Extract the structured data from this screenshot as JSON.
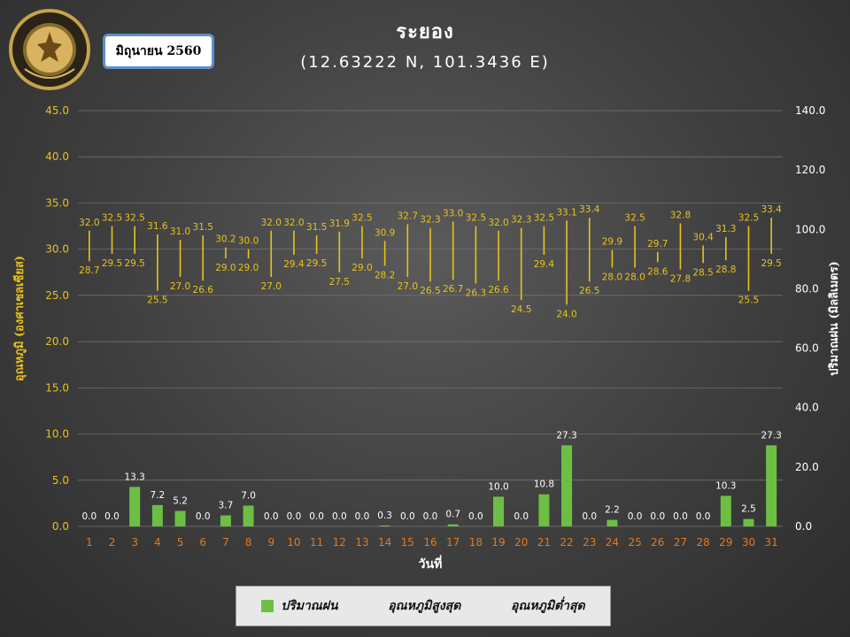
{
  "header": {
    "title": "ระยอง",
    "subtitle": "(12.63222 N, 101.3436 E)",
    "month_label": "มิถุนายน 2560",
    "logo_text": "METEOROLOGICAL DEPARTMENT"
  },
  "legend": {
    "rain": "ปริมาณฝน",
    "tmax": "อุณหภูมิสูงสุด",
    "tmin": "อุณหภูมิต่ำสุด"
  },
  "colors": {
    "rain": "#6dbf44",
    "temp": "#e8c21c",
    "axis_left": "#e8c21c",
    "xtick": "#e07a20"
  },
  "chart_data": {
    "type": "bar",
    "xlabel": "วันที่",
    "ylabel_left": "อุณหภูมิ (องศาเซลเซียส)",
    "ylabel_right": "ปริมาณฝน (มิลลิเมตร)",
    "ylim_left": [
      0,
      45
    ],
    "ylim_right": [
      0,
      140
    ],
    "left_ticks": [
      "0.0",
      "5.0",
      "10.0",
      "15.0",
      "20.0",
      "25.0",
      "30.0",
      "35.0",
      "40.0",
      "45.0"
    ],
    "right_ticks": [
      "0.0",
      "20.0",
      "40.0",
      "60.0",
      "80.0",
      "100.0",
      "120.0",
      "140.0"
    ],
    "categories": [
      "1",
      "2",
      "3",
      "4",
      "5",
      "6",
      "7",
      "8",
      "9",
      "10",
      "11",
      "12",
      "13",
      "14",
      "15",
      "16",
      "17",
      "18",
      "19",
      "20",
      "21",
      "22",
      "23",
      "24",
      "25",
      "26",
      "27",
      "28",
      "29",
      "30",
      "31"
    ],
    "series": [
      {
        "name": "ปริมาณฝน",
        "axis": "right",
        "type": "bar",
        "values": [
          0.0,
          0.0,
          13.3,
          7.2,
          5.2,
          0.0,
          3.7,
          7.0,
          0.0,
          0.0,
          0.0,
          0.0,
          0.0,
          0.3,
          0.0,
          0.0,
          0.7,
          0.0,
          10.0,
          0.0,
          10.8,
          27.3,
          0.0,
          2.2,
          0.0,
          0.0,
          0.0,
          0.0,
          10.3,
          2.5,
          27.3
        ]
      },
      {
        "name": "อุณหภูมิสูงสุด",
        "axis": "left",
        "type": "range-high",
        "values": [
          32.0,
          32.5,
          32.5,
          31.6,
          31.0,
          31.5,
          30.2,
          30.0,
          32.0,
          32.0,
          31.5,
          31.9,
          32.5,
          30.9,
          32.7,
          32.3,
          33.0,
          32.5,
          32.0,
          32.3,
          32.5,
          33.1,
          33.4,
          29.9,
          32.5,
          29.7,
          32.8,
          30.4,
          31.3,
          32.5,
          33.4
        ]
      },
      {
        "name": "อุณหภูมิต่ำสุด",
        "axis": "left",
        "type": "range-low",
        "values": [
          28.7,
          29.5,
          29.5,
          25.5,
          27.0,
          26.6,
          29.0,
          29.0,
          27.0,
          29.4,
          29.5,
          27.5,
          29.0,
          28.2,
          27.0,
          26.5,
          26.7,
          26.3,
          26.6,
          24.5,
          29.4,
          24.0,
          26.5,
          28.0,
          28.0,
          28.6,
          27.8,
          28.5,
          28.8,
          25.5,
          29.5
        ]
      }
    ]
  }
}
